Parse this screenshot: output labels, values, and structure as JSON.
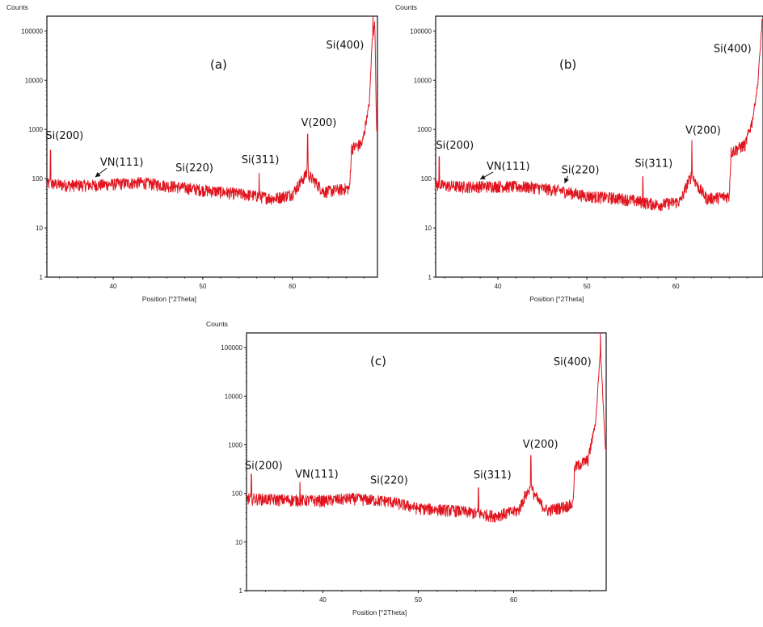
{
  "chart_data": [
    {
      "type": "line",
      "panel_label": "(a)",
      "ylabel": "Counts",
      "xlabel": "Position [°2Theta]",
      "yscale": "log",
      "ylim": [
        1,
        200000
      ],
      "xlim": [
        32.6,
        69.5
      ],
      "yticks": [
        {
          "v": 1,
          "label": "1"
        },
        {
          "v": 10,
          "label": "10"
        },
        {
          "v": 100,
          "label": "100"
        },
        {
          "v": 1000,
          "label": "1000"
        },
        {
          "v": 10000,
          "label": "10000"
        },
        {
          "v": 100000,
          "label": "100000"
        }
      ],
      "xticks": [
        {
          "v": 40,
          "label": "40"
        },
        {
          "v": 50,
          "label": "50"
        },
        {
          "v": 60,
          "label": "60"
        }
      ],
      "color": "#e0141e",
      "series": [
        {
          "baseline": [
            [
              32.6,
              80
            ],
            [
              35,
              75
            ],
            [
              38,
              75
            ],
            [
              43,
              85
            ],
            [
              47,
              70
            ],
            [
              50,
              60
            ],
            [
              55,
              48
            ],
            [
              58,
              40
            ],
            [
              60,
              50
            ],
            [
              61,
              90
            ],
            [
              61.6,
              130
            ],
            [
              62.5,
              90
            ],
            [
              63.5,
              55
            ],
            [
              66.4,
              65
            ],
            [
              66.6,
              420
            ],
            [
              67.8,
              520
            ],
            [
              68.6,
              3500
            ],
            [
              68.9,
              60000
            ],
            [
              69.2,
              150000
            ],
            [
              69.4,
              1200
            ]
          ],
          "peaks": [
            {
              "x": 33.0,
              "y": 380
            },
            {
              "x": 56.3,
              "y": 130
            },
            {
              "x": 61.7,
              "y": 800
            },
            {
              "x": 69.0,
              "y": 200000
            }
          ]
        }
      ],
      "annotations": [
        {
          "text": "Si(200)",
          "x": 33.0,
          "y": 380,
          "arrow": false
        },
        {
          "text": "VN(111)",
          "x": 38.0,
          "y": 100,
          "arrow": true
        },
        {
          "text": "Si(220)",
          "x": 47.5,
          "y": 90,
          "arrow": false
        },
        {
          "text": "Si(311)",
          "x": 56.3,
          "y": 130,
          "arrow": false
        },
        {
          "text": "V(200)",
          "x": 61.7,
          "y": 800,
          "arrow": false
        },
        {
          "text": "Si(400)",
          "x": 69.0,
          "y": 200000,
          "arrow": false
        }
      ]
    },
    {
      "type": "line",
      "panel_label": "(b)",
      "ylabel": "Counts",
      "xlabel": "Position [°2Theta]",
      "yscale": "log",
      "ylim": [
        1,
        200000
      ],
      "xlim": [
        33.0,
        69.8
      ],
      "yticks": [
        {
          "v": 1,
          "label": "1"
        },
        {
          "v": 10,
          "label": "10"
        },
        {
          "v": 100,
          "label": "100"
        },
        {
          "v": 1000,
          "label": "1000"
        },
        {
          "v": 10000,
          "label": "10000"
        },
        {
          "v": 100000,
          "label": "100000"
        }
      ],
      "xticks": [
        {
          "v": 40,
          "label": "40"
        },
        {
          "v": 50,
          "label": "50"
        },
        {
          "v": 60,
          "label": "60"
        }
      ],
      "color": "#e0141e",
      "series": [
        {
          "baseline": [
            [
              33.0,
              75
            ],
            [
              36,
              70
            ],
            [
              40,
              72
            ],
            [
              44,
              68
            ],
            [
              47,
              58
            ],
            [
              50,
              45
            ],
            [
              54,
              40
            ],
            [
              58,
              30
            ],
            [
              60.5,
              35
            ],
            [
              61.3,
              80
            ],
            [
              61.8,
              120
            ],
            [
              62.5,
              70
            ],
            [
              63.5,
              40
            ],
            [
              66.0,
              45
            ],
            [
              66.2,
              350
            ],
            [
              67.8,
              500
            ],
            [
              68.6,
              1500
            ],
            [
              69.2,
              8000
            ],
            [
              69.7,
              150000
            ]
          ],
          "peaks": [
            {
              "x": 33.4,
              "y": 280
            },
            {
              "x": 56.3,
              "y": 110
            },
            {
              "x": 61.8,
              "y": 600
            },
            {
              "x": 69.7,
              "y": 170000
            }
          ]
        }
      ],
      "annotations": [
        {
          "text": "Si(200)",
          "x": 33.4,
          "y": 280,
          "arrow": false
        },
        {
          "text": "VN(111)",
          "x": 38.0,
          "y": 90,
          "arrow": true
        },
        {
          "text": "Si(220)",
          "x": 47.5,
          "y": 75,
          "arrow": true
        },
        {
          "text": "Si(311)",
          "x": 56.3,
          "y": 110,
          "arrow": false
        },
        {
          "text": "V(200)",
          "x": 61.8,
          "y": 600,
          "arrow": false
        },
        {
          "text": "Si(400)",
          "x": 69.7,
          "y": 170000,
          "arrow": false
        }
      ]
    },
    {
      "type": "line",
      "panel_label": "(c)",
      "ylabel": "Counts",
      "xlabel": "Position [°2Theta]",
      "yscale": "log",
      "ylim": [
        1,
        200000
      ],
      "xlim": [
        32.0,
        69.7
      ],
      "yticks": [
        {
          "v": 1,
          "label": "1"
        },
        {
          "v": 10,
          "label": "10"
        },
        {
          "v": 100,
          "label": "100"
        },
        {
          "v": 1000,
          "label": "1000"
        },
        {
          "v": 10000,
          "label": "10000"
        },
        {
          "v": 100000,
          "label": "100000"
        }
      ],
      "xticks": [
        {
          "v": 40,
          "label": "40"
        },
        {
          "v": 50,
          "label": "50"
        },
        {
          "v": 60,
          "label": "60"
        }
      ],
      "color": "#e0141e",
      "series": [
        {
          "baseline": [
            [
              32.0,
              80
            ],
            [
              36,
              75
            ],
            [
              40,
              72
            ],
            [
              43,
              80
            ],
            [
              47,
              70
            ],
            [
              50,
              50
            ],
            [
              54,
              45
            ],
            [
              58,
              35
            ],
            [
              60.5,
              45
            ],
            [
              61.2,
              90
            ],
            [
              61.8,
              130
            ],
            [
              62.6,
              70
            ],
            [
              63.5,
              45
            ],
            [
              66.2,
              60
            ],
            [
              66.4,
              350
            ],
            [
              67.8,
              500
            ],
            [
              68.6,
              3000
            ],
            [
              69.1,
              100000
            ],
            [
              69.6,
              1000
            ]
          ],
          "peaks": [
            {
              "x": 32.5,
              "y": 250
            },
            {
              "x": 37.6,
              "y": 170
            },
            {
              "x": 56.3,
              "y": 130
            },
            {
              "x": 61.8,
              "y": 600
            },
            {
              "x": 69.1,
              "y": 200000
            }
          ]
        }
      ],
      "annotations": [
        {
          "text": "Si(200)",
          "x": 32.5,
          "y": 250,
          "arrow": false
        },
        {
          "text": "VN(111)",
          "x": 37.6,
          "y": 170,
          "arrow": false
        },
        {
          "text": "Si(220)",
          "x": 47.5,
          "y": 100,
          "arrow": false
        },
        {
          "text": "Si(311)",
          "x": 56.3,
          "y": 130,
          "arrow": false
        },
        {
          "text": "V(200)",
          "x": 61.8,
          "y": 600,
          "arrow": false
        },
        {
          "text": "Si(400)",
          "x": 69.1,
          "y": 200000,
          "arrow": false
        }
      ]
    }
  ]
}
